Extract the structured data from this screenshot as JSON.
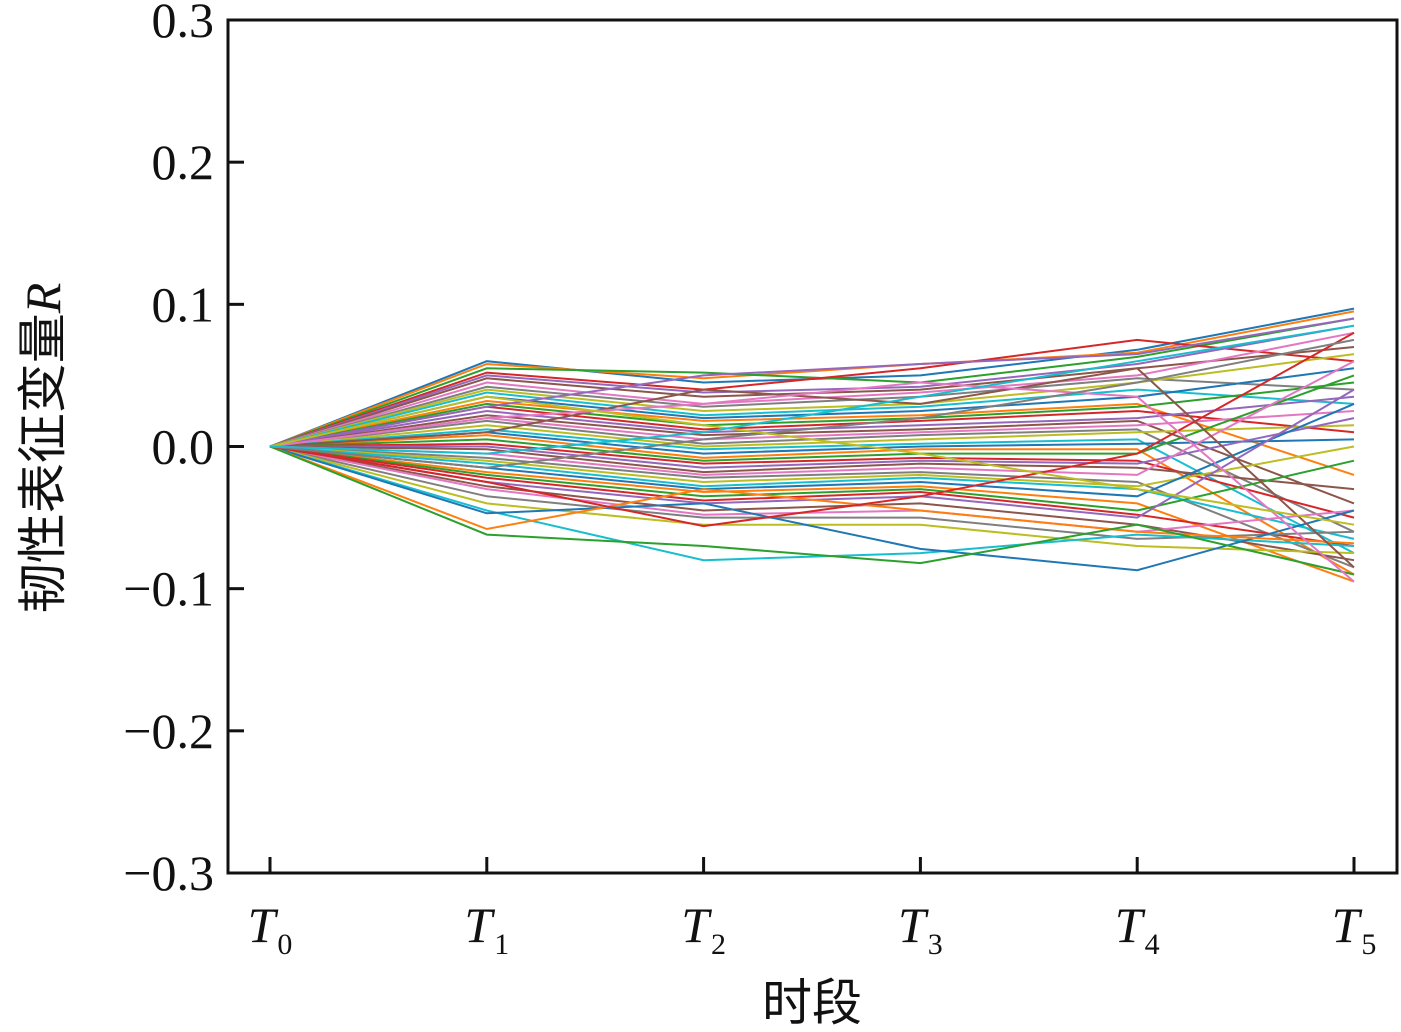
{
  "chart_data": {
    "type": "line",
    "title": "",
    "xlabel": "时段",
    "ylabel": "韧性表征变量",
    "ylabel_var": "R",
    "categories": [
      {
        "main": "T",
        "sub": "0"
      },
      {
        "main": "T",
        "sub": "1"
      },
      {
        "main": "T",
        "sub": "2"
      },
      {
        "main": "T",
        "sub": "3"
      },
      {
        "main": "T",
        "sub": "4"
      },
      {
        "main": "T",
        "sub": "5"
      }
    ],
    "ylim": [
      -0.3,
      0.3
    ],
    "yticks": [
      {
        "value": 0.3,
        "label": "0.3"
      },
      {
        "value": 0.2,
        "label": "0.2"
      },
      {
        "value": 0.1,
        "label": "0.1"
      },
      {
        "value": 0.0,
        "label": "0.0"
      },
      {
        "value": -0.1,
        "label": "−0.1"
      },
      {
        "value": -0.2,
        "label": "−0.2"
      },
      {
        "value": -0.3,
        "label": "−0.3"
      }
    ],
    "grid": false,
    "legend": "none",
    "series_count_note": "several hundred unnamed series, all starting at 0.0 at T0",
    "series_colors": [
      "#1f77b4",
      "#ff7f0e",
      "#2ca02c",
      "#d62728",
      "#9467bd",
      "#8c564b",
      "#e377c2",
      "#7f7f7f",
      "#bcbd22",
      "#17becf"
    ],
    "series": [
      {
        "values": [
          0.0,
          0.06,
          0.045,
          0.05,
          0.068,
          0.097
        ]
      },
      {
        "values": [
          0.0,
          0.058,
          0.048,
          0.058,
          0.066,
          0.095
        ]
      },
      {
        "values": [
          0.0,
          0.055,
          0.052,
          0.045,
          0.063,
          0.09
        ]
      },
      {
        "values": [
          0.0,
          0.052,
          0.04,
          0.055,
          0.075,
          0.06
        ]
      },
      {
        "values": [
          0.0,
          0.05,
          0.038,
          0.042,
          0.058,
          0.085
        ]
      },
      {
        "values": [
          0.0,
          0.048,
          0.035,
          0.04,
          0.055,
          0.07
        ]
      },
      {
        "values": [
          0.0,
          0.045,
          0.03,
          0.038,
          0.05,
          0.08
        ]
      },
      {
        "values": [
          0.0,
          0.042,
          0.028,
          0.035,
          0.048,
          0.04
        ]
      },
      {
        "values": [
          0.0,
          0.04,
          0.025,
          0.03,
          0.045,
          0.065
        ]
      },
      {
        "values": [
          0.0,
          0.038,
          0.022,
          0.028,
          0.04,
          0.03
        ]
      },
      {
        "values": [
          0.0,
          0.035,
          0.02,
          0.025,
          0.035,
          0.055
        ]
      },
      {
        "values": [
          0.0,
          0.032,
          0.018,
          0.022,
          0.03,
          -0.02
        ]
      },
      {
        "values": [
          0.0,
          0.03,
          0.015,
          0.02,
          0.028,
          0.045
        ]
      },
      {
        "values": [
          0.0,
          0.028,
          0.012,
          0.018,
          0.025,
          0.01
        ]
      },
      {
        "values": [
          0.0,
          0.025,
          0.01,
          0.015,
          0.02,
          0.035
        ]
      },
      {
        "values": [
          0.0,
          0.022,
          0.008,
          0.012,
          0.018,
          -0.04
        ]
      },
      {
        "values": [
          0.0,
          0.02,
          0.005,
          0.01,
          0.015,
          0.025
        ]
      },
      {
        "values": [
          0.0,
          0.018,
          0.002,
          0.008,
          0.012,
          -0.06
        ]
      },
      {
        "values": [
          0.0,
          0.015,
          0.0,
          0.005,
          0.01,
          0.015
        ]
      },
      {
        "values": [
          0.0,
          0.012,
          -0.002,
          0.002,
          0.005,
          -0.075
        ]
      },
      {
        "values": [
          0.0,
          0.01,
          -0.005,
          0.0,
          0.002,
          0.005
        ]
      },
      {
        "values": [
          0.0,
          0.008,
          -0.008,
          -0.002,
          -0.002,
          -0.09
        ]
      },
      {
        "values": [
          0.0,
          0.005,
          -0.01,
          -0.005,
          -0.005,
          0.05
        ]
      },
      {
        "values": [
          0.0,
          0.002,
          -0.012,
          -0.008,
          -0.01,
          -0.05
        ]
      },
      {
        "values": [
          0.0,
          0.0,
          -0.015,
          -0.01,
          -0.012,
          0.02
        ]
      },
      {
        "values": [
          0.0,
          -0.002,
          -0.018,
          -0.012,
          -0.015,
          -0.03
        ]
      },
      {
        "values": [
          0.0,
          -0.005,
          -0.02,
          -0.015,
          -0.02,
          0.06
        ]
      },
      {
        "values": [
          0.0,
          -0.008,
          -0.022,
          -0.018,
          -0.025,
          -0.085
        ]
      },
      {
        "values": [
          0.0,
          -0.01,
          -0.025,
          -0.02,
          -0.028,
          0.0
        ]
      },
      {
        "values": [
          0.0,
          -0.012,
          -0.028,
          -0.022,
          -0.03,
          -0.065
        ]
      },
      {
        "values": [
          0.0,
          -0.015,
          -0.03,
          -0.025,
          -0.035,
          0.03
        ]
      },
      {
        "values": [
          0.0,
          -0.018,
          -0.032,
          -0.028,
          -0.04,
          -0.095
        ]
      },
      {
        "values": [
          0.0,
          -0.02,
          -0.035,
          -0.03,
          -0.045,
          -0.01
        ]
      },
      {
        "values": [
          0.0,
          -0.022,
          -0.038,
          -0.032,
          -0.048,
          -0.07
        ]
      },
      {
        "values": [
          0.0,
          -0.025,
          -0.04,
          -0.035,
          -0.05,
          0.04
        ]
      },
      {
        "values": [
          0.0,
          -0.028,
          -0.045,
          -0.04,
          -0.055,
          -0.08
        ]
      },
      {
        "values": [
          0.0,
          -0.03,
          -0.048,
          -0.045,
          -0.06,
          -0.045
        ]
      },
      {
        "values": [
          0.0,
          -0.035,
          -0.05,
          -0.05,
          -0.065,
          -0.06
        ]
      },
      {
        "values": [
          0.0,
          -0.04,
          -0.055,
          -0.055,
          -0.07,
          -0.075
        ]
      },
      {
        "values": [
          0.0,
          -0.045,
          -0.08,
          -0.075,
          -0.062,
          -0.07
        ]
      },
      {
        "values": [
          0.0,
          -0.047,
          -0.04,
          -0.072,
          -0.087,
          -0.045
        ]
      },
      {
        "values": [
          0.0,
          -0.058,
          -0.03,
          -0.045,
          -0.06,
          -0.068
        ]
      },
      {
        "values": [
          0.0,
          -0.062,
          -0.07,
          -0.082,
          -0.055,
          -0.09
        ]
      },
      {
        "values": [
          0.0,
          -0.025,
          -0.056,
          -0.035,
          -0.005,
          0.08
        ]
      },
      {
        "values": [
          0.0,
          0.028,
          0.05,
          0.058,
          0.065,
          0.09
        ]
      },
      {
        "values": [
          0.0,
          0.01,
          0.04,
          0.03,
          0.055,
          -0.085
        ]
      },
      {
        "values": [
          0.0,
          0.02,
          0.03,
          0.045,
          0.035,
          -0.095
        ]
      },
      {
        "values": [
          0.0,
          -0.015,
          0.005,
          0.02,
          0.045,
          0.075
        ]
      },
      {
        "values": [
          0.0,
          0.035,
          0.015,
          -0.005,
          -0.03,
          -0.055
        ]
      },
      {
        "values": [
          0.0,
          -0.005,
          0.01,
          0.035,
          0.06,
          0.085
        ]
      }
    ]
  }
}
